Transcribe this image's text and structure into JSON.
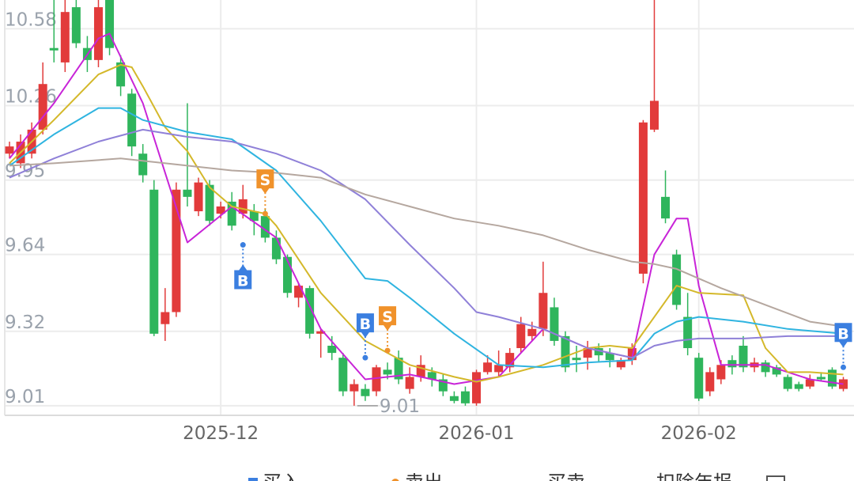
{
  "chart_data": {
    "type": "candlestick",
    "categories": [
      null,
      null,
      null,
      null,
      null,
      null,
      null,
      null,
      null,
      null,
      null,
      null,
      null,
      null,
      null,
      null,
      null,
      null,
      null,
      "2025-12",
      null,
      null,
      null,
      null,
      null,
      null,
      null,
      null,
      null,
      null,
      null,
      null,
      null,
      null,
      null,
      null,
      null,
      null,
      null,
      null,
      null,
      null,
      "2026-01",
      null,
      null,
      null,
      null,
      null,
      null,
      null,
      null,
      null,
      null,
      null,
      null,
      null,
      null,
      null,
      null,
      null,
      null,
      null,
      "2026-02",
      null,
      null,
      null,
      null,
      null,
      null,
      null,
      null,
      null,
      null,
      null,
      null,
      null
    ],
    "open": [
      10.06,
      10.02,
      10.06,
      10.16,
      10.5,
      10.44,
      10.67,
      10.5,
      10.45,
      10.7,
      10.44,
      10.31,
      10.06,
      9.91,
      9.35,
      9.4,
      9.91,
      9.82,
      9.93,
      9.81,
      9.86,
      9.81,
      9.82,
      9.8,
      9.71,
      9.63,
      9.46,
      9.5,
      9.31,
      9.26,
      9.21,
      9.07,
      9.08,
      9.07,
      9.16,
      9.21,
      9.08,
      9.13,
      9.15,
      9.12,
      9.05,
      9.07,
      9.02,
      9.15,
      9.15,
      9.17,
      9.25,
      9.3,
      9.33,
      9.42,
      9.3,
      9.21,
      9.21,
      9.25,
      9.23,
      9.17,
      9.2,
      9.56,
      10.16,
      9.88,
      9.64,
      9.38,
      9.21,
      9.07,
      9.12,
      9.2,
      9.26,
      9.17,
      9.19,
      9.17,
      9.13,
      9.1,
      9.09,
      9.13,
      9.16,
      9.08
    ],
    "high": [
      10.11,
      10.14,
      10.19,
      10.44,
      10.7,
      10.7,
      10.7,
      10.55,
      10.7,
      10.7,
      10.47,
      10.33,
      10.1,
      9.95,
      9.5,
      9.94,
      10.27,
      9.96,
      9.95,
      9.86,
      9.9,
      9.93,
      9.85,
      9.83,
      9.74,
      9.64,
      9.52,
      9.51,
      9.33,
      9.3,
      9.23,
      9.12,
      9.1,
      9.18,
      9.19,
      9.24,
      9.17,
      9.22,
      9.17,
      9.14,
      9.07,
      9.09,
      9.16,
      9.22,
      9.24,
      9.25,
      9.38,
      9.36,
      9.61,
      9.46,
      9.32,
      9.26,
      9.28,
      9.27,
      9.25,
      9.21,
      9.27,
      10.2,
      10.7,
      9.99,
      9.66,
      9.48,
      9.23,
      9.17,
      9.2,
      9.22,
      9.3,
      9.21,
      9.2,
      9.18,
      9.14,
      9.11,
      9.14,
      9.15,
      9.17,
      9.13
    ],
    "low": [
      10.04,
      10.0,
      10.04,
      10.14,
      10.44,
      10.4,
      10.5,
      10.4,
      10.42,
      10.47,
      10.3,
      10.05,
      9.94,
      9.3,
      9.28,
      9.38,
      9.84,
      9.8,
      9.76,
      9.79,
      9.74,
      9.79,
      9.72,
      9.69,
      9.6,
      9.46,
      9.42,
      9.29,
      9.21,
      9.2,
      9.05,
      9.01,
      9.03,
      9.05,
      9.12,
      9.1,
      9.06,
      9.11,
      9.09,
      9.05,
      9.02,
      9.01,
      9.01,
      9.14,
      9.13,
      9.15,
      9.23,
      9.28,
      9.3,
      9.26,
      9.15,
      9.15,
      9.16,
      9.19,
      9.17,
      9.16,
      9.18,
      9.52,
      10.15,
      9.77,
      9.41,
      9.22,
      9.03,
      9.05,
      9.1,
      9.14,
      9.15,
      9.15,
      9.13,
      9.13,
      9.07,
      9.07,
      9.08,
      9.11,
      9.08,
      9.07
    ],
    "close": [
      10.09,
      10.11,
      10.16,
      10.35,
      10.49,
      10.65,
      10.52,
      10.45,
      10.67,
      10.5,
      10.34,
      10.09,
      9.97,
      9.31,
      9.4,
      9.91,
      9.88,
      9.94,
      9.78,
      9.84,
      9.76,
      9.87,
      9.78,
      9.71,
      9.62,
      9.48,
      9.51,
      9.31,
      9.32,
      9.23,
      9.07,
      9.1,
      9.05,
      9.17,
      9.14,
      9.12,
      9.13,
      9.18,
      9.12,
      9.07,
      9.03,
      9.02,
      9.15,
      9.19,
      9.18,
      9.23,
      9.35,
      9.33,
      9.48,
      9.28,
      9.17,
      9.2,
      9.25,
      9.22,
      9.2,
      9.2,
      9.25,
      10.19,
      10.28,
      9.79,
      9.43,
      9.25,
      9.04,
      9.15,
      9.18,
      9.17,
      9.17,
      9.19,
      9.15,
      9.14,
      9.08,
      9.08,
      9.12,
      9.12,
      9.09,
      9.12
    ],
    "up_color": "#e23b3b",
    "down_color": "#2fb55c",
    "lines": [
      {
        "color": "#c824d8",
        "x": [
          0,
          4,
          8,
          9,
          12,
          16,
          20,
          24,
          28,
          32,
          36,
          40,
          44,
          48,
          52,
          56,
          58,
          60,
          61,
          62,
          64,
          68,
          72,
          75
        ],
        "values": [
          10.04,
          10.27,
          10.54,
          10.56,
          10.27,
          9.69,
          9.84,
          9.71,
          9.33,
          9.12,
          9.14,
          9.1,
          9.13,
          9.33,
          9.25,
          9.21,
          9.64,
          9.79,
          9.79,
          9.51,
          9.18,
          9.18,
          9.12,
          9.1
        ]
      },
      {
        "color": "#d4b82a",
        "x": [
          0,
          4,
          8,
          10,
          11,
          12,
          14,
          16,
          18,
          20,
          23,
          24,
          28,
          32,
          34,
          36,
          40,
          42,
          44,
          48,
          52,
          54,
          56,
          58,
          60,
          62,
          66,
          68,
          70,
          72,
          75
        ],
        "values": [
          10.02,
          10.2,
          10.39,
          10.43,
          10.42,
          10.34,
          10.17,
          10.07,
          9.92,
          9.84,
          9.81,
          9.76,
          9.48,
          9.28,
          9.23,
          9.18,
          9.13,
          9.11,
          9.13,
          9.18,
          9.25,
          9.26,
          9.25,
          9.38,
          9.51,
          9.48,
          9.47,
          9.25,
          9.15,
          9.15,
          9.14
        ]
      },
      {
        "color": "#2fb4e0",
        "x": [
          0,
          4,
          8,
          10,
          12,
          16,
          20,
          24,
          28,
          32,
          34,
          36,
          40,
          44,
          48,
          52,
          56,
          58,
          60,
          62,
          66,
          70,
          75
        ],
        "values": [
          10.01,
          10.14,
          10.25,
          10.25,
          10.2,
          10.15,
          10.12,
          9.99,
          9.78,
          9.54,
          9.53,
          9.46,
          9.31,
          9.18,
          9.17,
          9.19,
          9.2,
          9.31,
          9.36,
          9.38,
          9.36,
          9.33,
          9.31
        ]
      },
      {
        "color": "#8f80d8",
        "x": [
          0,
          4,
          8,
          12,
          16,
          20,
          24,
          28,
          32,
          36,
          40,
          42,
          44,
          48,
          52,
          56,
          58,
          60,
          62,
          66,
          70,
          75
        ],
        "values": [
          9.96,
          10.04,
          10.11,
          10.16,
          10.13,
          10.11,
          10.06,
          9.99,
          9.87,
          9.68,
          9.5,
          9.4,
          9.38,
          9.33,
          9.25,
          9.21,
          9.26,
          9.28,
          9.29,
          9.29,
          9.3,
          9.3
        ]
      },
      {
        "color": "#b5a79f",
        "x": [
          0,
          4,
          10,
          16,
          20,
          24,
          28,
          32,
          36,
          40,
          44,
          48,
          52,
          56,
          58,
          60,
          64,
          68,
          72,
          75
        ],
        "values": [
          10.01,
          10.02,
          10.04,
          10.01,
          9.99,
          9.98,
          9.96,
          9.89,
          9.84,
          9.79,
          9.76,
          9.72,
          9.66,
          9.61,
          9.6,
          9.58,
          9.5,
          9.43,
          9.36,
          9.34
        ]
      }
    ],
    "markers": [
      {
        "x": 21,
        "value": 9.68,
        "label": "B",
        "position": "below",
        "color": "#3b7fe0"
      },
      {
        "x": 23,
        "value": 9.81,
        "label": "S",
        "position": "above",
        "color": "#f0922b"
      },
      {
        "x": 32,
        "value": 9.21,
        "label": "B",
        "position": "above",
        "color": "#3b7fe0"
      },
      {
        "x": 34,
        "value": 9.24,
        "label": "S",
        "position": "above",
        "color": "#f0922b"
      },
      {
        "x": 75,
        "value": 9.17,
        "label": "B",
        "position": "above",
        "color": "#3b7fe0"
      }
    ],
    "annotations": [
      {
        "x": 31,
        "value": 9.01,
        "text": "9.01"
      }
    ],
    "legend": [
      {
        "label": "买入",
        "color": "#3b7fe0"
      },
      {
        "label": "卖出",
        "color": "#f0922b"
      },
      {
        "label": "买卖",
        "color": "#c824d8"
      },
      {
        "label": "扣除年报",
        "color": "#555555"
      }
    ],
    "ylim": [
      8.97,
      10.7
    ],
    "yticks": [
      9.01,
      9.32,
      9.64,
      9.95,
      10.26,
      10.58
    ],
    "grid": true
  }
}
